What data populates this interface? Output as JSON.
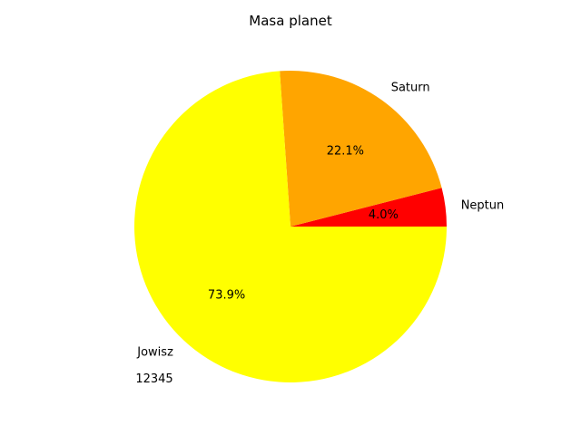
{
  "chart_data": {
    "type": "pie",
    "title": "Masa planet",
    "slices": [
      {
        "label": "Neptun",
        "value": 4.0,
        "pct_label": "4.0%",
        "color": "#ff0000"
      },
      {
        "label": "Saturn",
        "value": 22.1,
        "pct_label": "22.1%",
        "color": "#ffa500"
      },
      {
        "label": "Jowisz",
        "value": 73.9,
        "pct_label": "73.9%",
        "color": "#ffff00"
      }
    ],
    "annotation": "12345",
    "start_angle_deg": 0,
    "direction": "counterclockwise"
  }
}
